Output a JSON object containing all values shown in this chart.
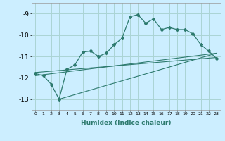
{
  "title": "",
  "xlabel": "Humidex (Indice chaleur)",
  "background_color": "#cceeff",
  "line_color": "#2d7a6e",
  "grid_color": "#aad4d4",
  "xlim": [
    -0.5,
    23.5
  ],
  "ylim": [
    -13.5,
    -8.5
  ],
  "xticks": [
    0,
    1,
    2,
    3,
    4,
    5,
    6,
    7,
    8,
    9,
    10,
    11,
    12,
    13,
    14,
    15,
    16,
    17,
    18,
    19,
    20,
    21,
    22,
    23
  ],
  "yticks": [
    -13,
    -12,
    -11,
    -10,
    -9
  ],
  "main_line_x": [
    0,
    1,
    2,
    3,
    4,
    5,
    6,
    7,
    8,
    9,
    10,
    11,
    12,
    13,
    14,
    15,
    16,
    17,
    18,
    19,
    20,
    21,
    22,
    23
  ],
  "main_line_y": [
    -11.8,
    -11.9,
    -12.3,
    -13.0,
    -11.6,
    -11.4,
    -10.8,
    -10.75,
    -11.0,
    -10.85,
    -10.45,
    -10.15,
    -9.15,
    -9.05,
    -9.45,
    -9.25,
    -9.75,
    -9.65,
    -9.75,
    -9.75,
    -9.95,
    -10.45,
    -10.75,
    -11.1
  ],
  "line2_x": [
    0,
    23
  ],
  "line2_y": [
    -11.75,
    -11.05
  ],
  "line3_x": [
    0,
    23
  ],
  "line3_y": [
    -11.9,
    -10.85
  ],
  "line4_x": [
    3,
    23
  ],
  "line4_y": [
    -13.0,
    -10.85
  ]
}
